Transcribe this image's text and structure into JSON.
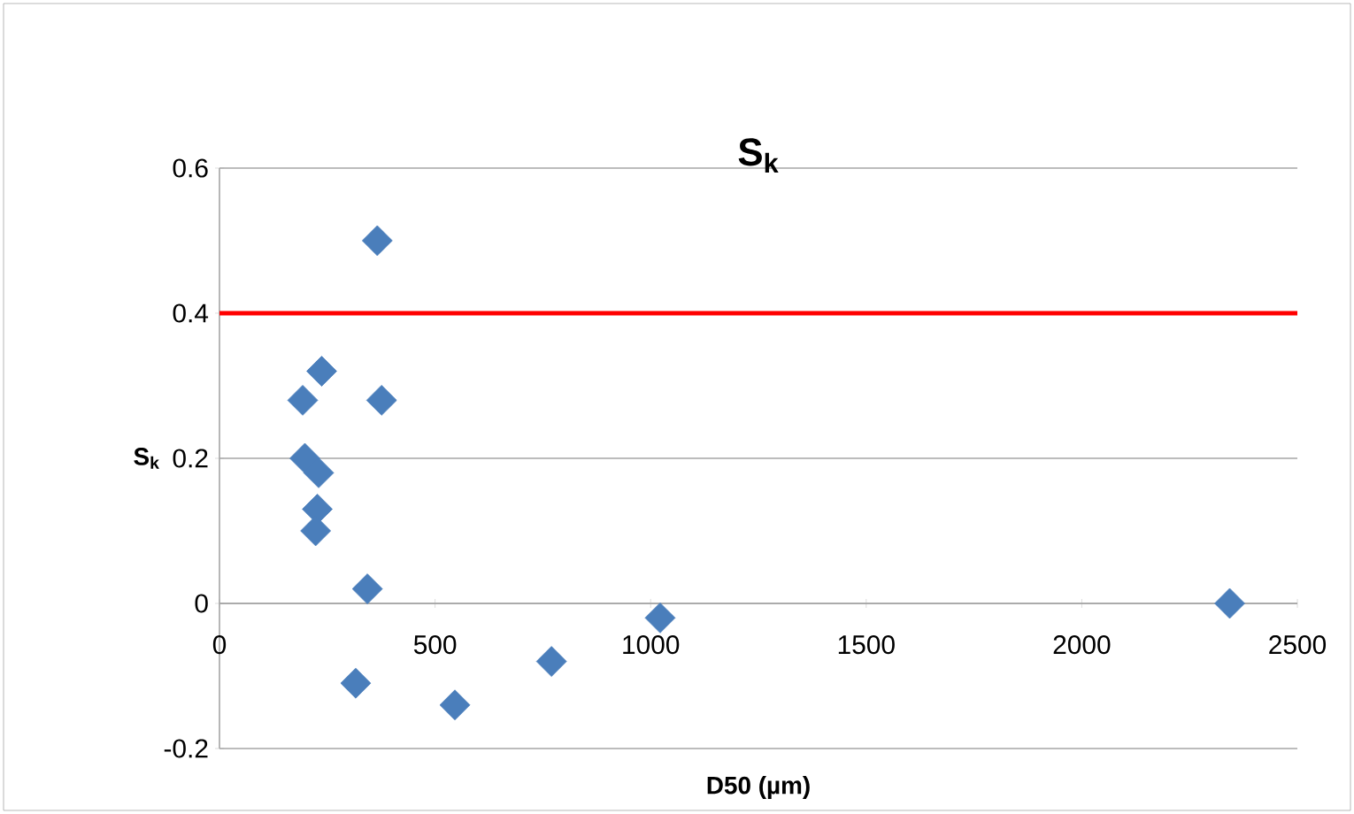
{
  "chart_data": {
    "type": "scatter",
    "title": "S$_{k}$",
    "xlabel": "D50 (µm)",
    "ylabel": "S$_{k}$",
    "x": [
      366,
      237,
      193,
      376,
      198,
      230,
      227,
      223,
      343,
      1022,
      770,
      316,
      546,
      2343
    ],
    "series": [
      {
        "color": "#4a7ebb",
        "values": [
          0.5,
          0.32,
          0.28,
          0.28,
          0.2,
          0.18,
          0.13,
          0.1,
          0.02,
          -0.02,
          -0.08,
          -0.11,
          -0.14,
          0.0
        ]
      }
    ],
    "xlim": [
      0,
      2500
    ],
    "xticks": [
      0,
      500,
      1000,
      1500,
      2000,
      2500
    ],
    "ylim": [
      -0.2,
      0.6
    ],
    "yticks": [
      -0.2,
      0,
      0.2,
      0.4,
      0.6
    ],
    "ref_lines": [
      {
        "axis": "y",
        "value": 0.4,
        "color": "#ff0000"
      }
    ],
    "grid": "y",
    "marker": "diamond",
    "legend": false
  }
}
